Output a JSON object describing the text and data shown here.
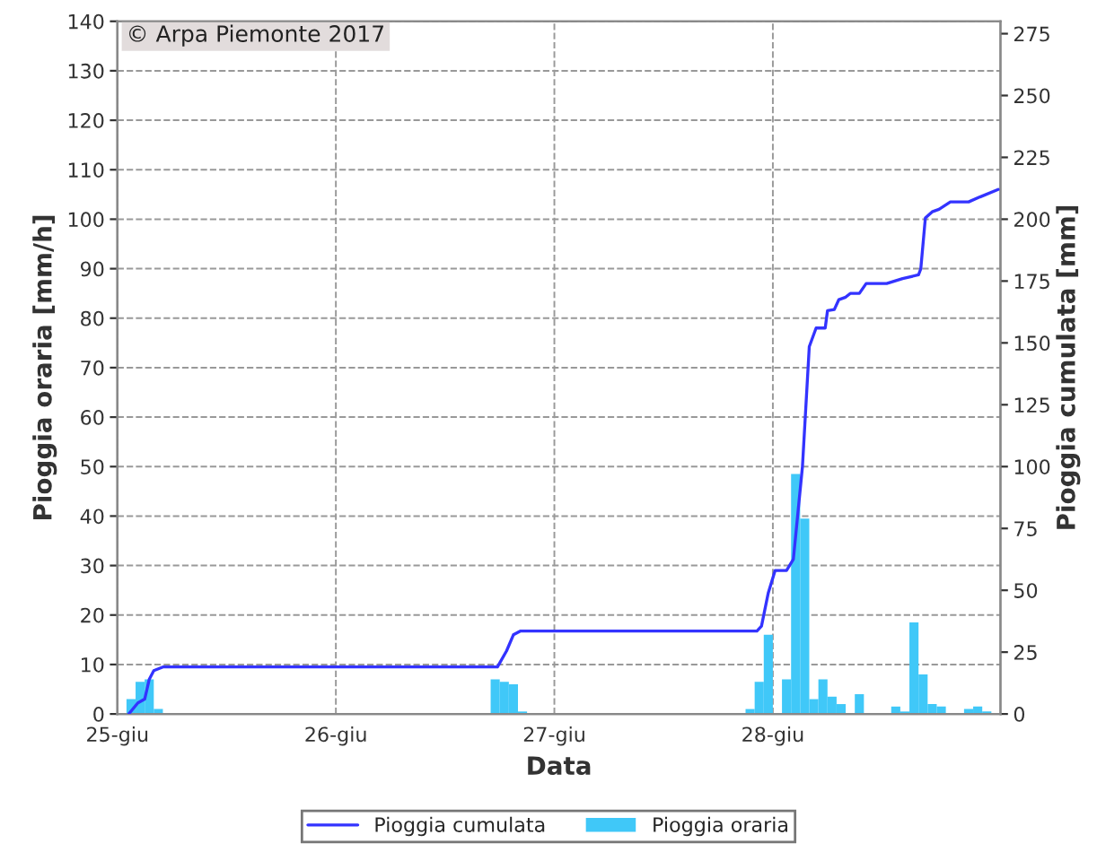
{
  "chart_data": {
    "type": "bar",
    "xlabel": "Data",
    "ylabel": "Pioggia oraria [mm/h]",
    "y2label": "Pioggia cumulata [mm]",
    "annotations": [
      "© Arpa Piemonte 2017"
    ],
    "xlim": [
      "2017-06-25T00:00",
      "2017-06-29T01:00"
    ],
    "xticks": [
      {
        "value": "2017-06-25",
        "label": "25-giu"
      },
      {
        "value": "2017-06-26",
        "label": "26-giu"
      },
      {
        "value": "2017-06-27",
        "label": "27-giu"
      },
      {
        "value": "2017-06-28",
        "label": "28-giu"
      }
    ],
    "ylim": [
      0,
      140
    ],
    "yticks": [
      0,
      10,
      20,
      30,
      40,
      50,
      60,
      70,
      80,
      90,
      100,
      110,
      120,
      130,
      140
    ],
    "y2lim": [
      0,
      280
    ],
    "y2ticks": [
      0,
      25,
      50,
      75,
      100,
      125,
      150,
      175,
      200,
      225,
      250,
      275
    ],
    "grid": true,
    "legend": "bottom",
    "series": [
      {
        "name": "Pioggia cumulata",
        "type": "line",
        "axis": "y2",
        "color": "#3333ff",
        "x": [
          "2017-06-25T01:15",
          "2017-06-25T02:15",
          "2017-06-25T03:00",
          "2017-06-25T03:30",
          "2017-06-25T04:00",
          "2017-06-25T05:00",
          "2017-06-26T17:45",
          "2017-06-26T18:45",
          "2017-06-26T19:30",
          "2017-06-26T20:15",
          "2017-06-27T22:15",
          "2017-06-27T22:45",
          "2017-06-27T23:30",
          "2017-06-28T00:15",
          "2017-06-28T01:30",
          "2017-06-28T02:15",
          "2017-06-28T03:15",
          "2017-06-28T04:00",
          "2017-06-28T04:45",
          "2017-06-28T05:45",
          "2017-06-28T06:00",
          "2017-06-28T06:45",
          "2017-06-28T07:15",
          "2017-06-28T08:00",
          "2017-06-28T08:30",
          "2017-06-28T09:30",
          "2017-06-28T10:15",
          "2017-06-28T12:30",
          "2017-06-28T14:15",
          "2017-06-28T16:00",
          "2017-06-28T16:15",
          "2017-06-28T16:45",
          "2017-06-28T17:30",
          "2017-06-28T18:15",
          "2017-06-28T19:30",
          "2017-06-28T21:30",
          "2017-06-28T22:45",
          "2017-06-29T00:45"
        ],
        "values": [
          0,
          4.5,
          6,
          14,
          17.5,
          19,
          19,
          25.5,
          32,
          33.5,
          33.5,
          35.5,
          49,
          58,
          58,
          62.5,
          100,
          148.5,
          156,
          156,
          163,
          163.5,
          167.5,
          168.5,
          170,
          170,
          174,
          174,
          176,
          177.5,
          180,
          200.5,
          203,
          204,
          207,
          207,
          209,
          212
        ]
      },
      {
        "name": "Pioggia oraria",
        "axis": "y",
        "color": "#40c8f8",
        "x": [
          "2017-06-25T01:00",
          "2017-06-25T02:00",
          "2017-06-25T03:00",
          "2017-06-25T04:00",
          "2017-06-26T17:00",
          "2017-06-26T18:00",
          "2017-06-26T19:00",
          "2017-06-26T20:00",
          "2017-06-27T21:00",
          "2017-06-27T22:00",
          "2017-06-27T23:00",
          "2017-06-28T01:00",
          "2017-06-28T02:00",
          "2017-06-28T03:00",
          "2017-06-28T04:00",
          "2017-06-28T05:00",
          "2017-06-28T06:00",
          "2017-06-28T07:00",
          "2017-06-28T09:00",
          "2017-06-28T13:00",
          "2017-06-28T14:00",
          "2017-06-28T15:00",
          "2017-06-28T16:00",
          "2017-06-28T17:00",
          "2017-06-28T18:00",
          "2017-06-28T21:00",
          "2017-06-28T22:00",
          "2017-06-28T23:00"
        ],
        "values": [
          3,
          6.5,
          7,
          1,
          7,
          6.5,
          6,
          0.5,
          1,
          6.5,
          16,
          7,
          48.5,
          39.5,
          3,
          7,
          3.5,
          2,
          4,
          1.5,
          0.5,
          18.5,
          8,
          2,
          1.5,
          1,
          1.5,
          0.5
        ]
      }
    ]
  }
}
